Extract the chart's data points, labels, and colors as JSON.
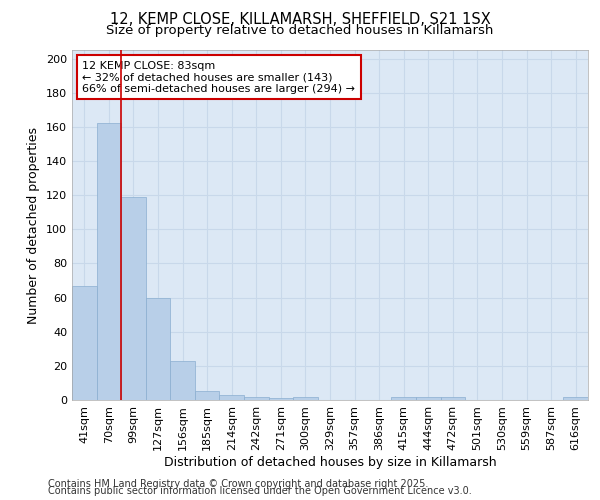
{
  "title1": "12, KEMP CLOSE, KILLAMARSH, SHEFFIELD, S21 1SX",
  "title2": "Size of property relative to detached houses in Killamarsh",
  "xlabel": "Distribution of detached houses by size in Killamarsh",
  "ylabel": "Number of detached properties",
  "categories": [
    "41sqm",
    "70sqm",
    "99sqm",
    "127sqm",
    "156sqm",
    "185sqm",
    "214sqm",
    "242sqm",
    "271sqm",
    "300sqm",
    "329sqm",
    "357sqm",
    "386sqm",
    "415sqm",
    "444sqm",
    "472sqm",
    "501sqm",
    "530sqm",
    "559sqm",
    "587sqm",
    "616sqm"
  ],
  "values": [
    67,
    162,
    119,
    60,
    23,
    5,
    3,
    2,
    1,
    2,
    0,
    0,
    0,
    2,
    2,
    2,
    0,
    0,
    0,
    0,
    2
  ],
  "bar_color": "#b8cfe8",
  "bar_edge_color": "#b8cfe8",
  "annotation_line1": "12 KEMP CLOSE: 83sqm",
  "annotation_line2": "← 32% of detached houses are smaller (143)",
  "annotation_line3": "66% of semi-detached houses are larger (294) →",
  "annotation_box_color": "#ffffff",
  "annotation_box_edge_color": "#cc0000",
  "vline_color": "#cc0000",
  "vline_x_index": 1.5,
  "ylim": [
    0,
    205
  ],
  "yticks": [
    0,
    20,
    40,
    60,
    80,
    100,
    120,
    140,
    160,
    180,
    200
  ],
  "footer1": "Contains HM Land Registry data © Crown copyright and database right 2025.",
  "footer2": "Contains public sector information licensed under the Open Government Licence v3.0.",
  "grid_color": "#c8d8ea",
  "background_color": "#dce8f5",
  "title_fontsize": 10.5,
  "subtitle_fontsize": 9.5,
  "axis_label_fontsize": 9,
  "tick_fontsize": 8,
  "annotation_fontsize": 8,
  "footer_fontsize": 7
}
